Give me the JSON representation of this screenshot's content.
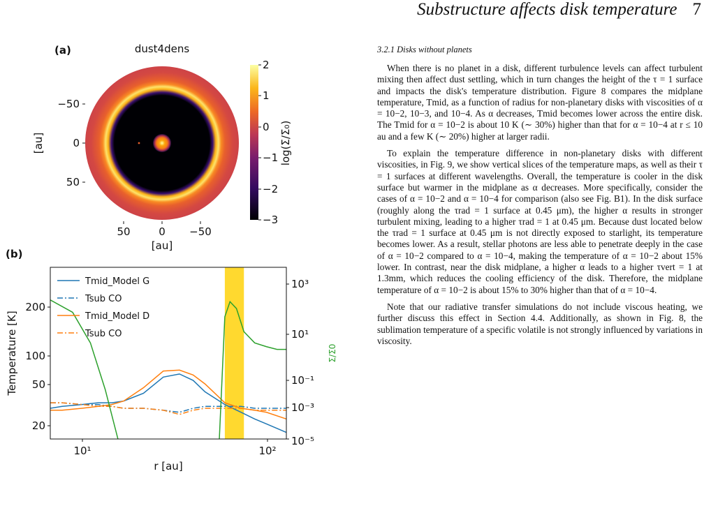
{
  "header": {
    "title": "Substructure affects disk temperature",
    "page": "7"
  },
  "figure_a": {
    "label": "(a)",
    "title": "dust4dens",
    "yticks": [
      "−50",
      "0",
      "50"
    ],
    "xticks": [
      "50",
      "0",
      "−50"
    ],
    "ylabel": "[au]",
    "xlabel": "[au]",
    "colorbar_label": "log(Σ/Σ₀)",
    "colorbar_ticks": [
      "2",
      "1",
      "0",
      "−1",
      "−2",
      "−3"
    ],
    "colors": {
      "inferno_low": "#000004",
      "inferno_mid": "#bc3754",
      "inferno_high": "#fcffa4"
    }
  },
  "figure_b": {
    "label": "(b)",
    "ylabel": "Temperature [K]",
    "xlabel": "r [au]",
    "ylabel_right": "Σ/Σ0",
    "left_ticks": [
      "200",
      "100",
      "50",
      "20"
    ],
    "right_ticks": [
      "10³",
      "10¹",
      "10⁻¹",
      "10⁻³",
      "10⁻⁵"
    ],
    "x_ticks": [
      "10¹",
      "10²"
    ],
    "legend": [
      "Tmid_Model G",
      "Tsub CO",
      "Tmid_Model D",
      "Tsub CO"
    ],
    "colors": {
      "model_g": "#1f77b4",
      "model_d": "#ff7f0e",
      "sigma": "#2ca02c",
      "band": "#ffd92f"
    }
  },
  "chart_data": {
    "type": "line",
    "x": [
      7,
      8,
      10,
      12,
      14,
      16,
      20,
      25,
      30,
      35,
      40,
      50,
      60,
      70,
      80,
      100
    ],
    "xlabel": "r [au]",
    "ylabel": "Temperature [K]",
    "xscale": "log",
    "yscale": "log",
    "xlim": [
      7,
      100
    ],
    "ylim": [
      15,
      400
    ],
    "series": [
      {
        "name": "Tmid_Model G",
        "values": [
          27,
          28,
          29,
          30,
          30,
          31,
          36,
          49,
          52,
          46,
          37,
          29,
          25,
          22,
          20,
          17
        ]
      },
      {
        "name": "Tsub CO",
        "values": [
          30,
          30,
          29,
          29,
          28,
          27,
          27,
          26,
          25,
          27,
          28,
          28,
          28,
          27,
          27,
          27
        ]
      },
      {
        "name": "Tmid_Model D",
        "values": [
          26,
          26,
          27,
          28,
          29,
          31,
          40,
          55,
          56,
          51,
          43,
          30,
          27,
          26,
          25,
          22
        ]
      },
      {
        "name": "Tsub CO",
        "values": [
          30,
          30,
          29,
          28,
          28,
          27,
          27,
          26,
          24,
          26,
          27,
          27,
          27,
          26,
          26,
          26
        ]
      }
    ],
    "secondary_axis": {
      "label": "Σ/Σ0",
      "scale": "log",
      "ylim": [
        1e-05,
        1000
      ],
      "series": [
        {
          "color": "#2ca02c",
          "x": [
            7,
            9,
            11,
            13,
            15,
            18,
            40,
            47,
            50,
            53,
            57,
            62,
            70,
            80,
            90,
            100
          ],
          "values": [
            30,
            8,
            0.3,
            0.002,
            1e-05,
            1e-06,
            1e-06,
            1e-05,
            5,
            25,
            12,
            1,
            0.3,
            0.2,
            0.15,
            0.15
          ]
        }
      ]
    },
    "highlight_band": [
      50,
      62
    ]
  },
  "text": {
    "section": "3.2.1 Disks without planets",
    "p1": "When there is no planet in a disk, different turbulence levels can affect turbulent mixing then affect dust settling, which in turn changes the height of the τ = 1 surface and impacts the disk's temperature distribution. Figure 8 compares the midplane temperature, Tmid, as a function of radius for non-planetary disks with viscosities of α = 10−2, 10−3, and 10−4. As α decreases, Tmid becomes lower across the entire disk. The Tmid for α = 10−2 is about 10 K (∼ 30%) higher than that for α = 10−4 at r ≤ 10 au and a few K (∼ 20%) higher at larger radii.",
    "p2": "To explain the temperature difference in non-planetary disks with different viscosities, in Fig. 9, we show vertical slices of the temperature maps, as well as their τ = 1 surfaces at different wavelengths. Overall, the temperature is cooler in the disk surface but warmer in the midplane as α decreases. More specifically, consider the cases of α = 10−2 and α = 10−4 for comparison (also see Fig. B1). In the disk surface (roughly along the τrad = 1 surface at 0.45 μm), the higher α results in stronger turbulent mixing, leading to a higher τrad = 1 at 0.45 μm. Because dust located below the τrad = 1 surface at 0.45 μm is not directly exposed to starlight, its temperature becomes lower. As a result, stellar photons are less able to penetrate deeply in the case of α = 10−2 compared to α = 10−4, making the temperature of α = 10−2 about 15% lower. In contrast, near the disk midplane, a higher α leads to a higher τvert = 1 at 1.3mm, which reduces the cooling efficiency of the disk. Therefore, the midplane temperature of α = 10−2 is about 15% to 30% higher than that of α = 10−4.",
    "p3": "Note that our radiative transfer simulations do not include viscous heating, we further discuss this effect in Section 4.4. Additionally, as shown in Fig. 8, the sublimation temperature of a specific volatile is not strongly influenced by variations in viscosity."
  }
}
